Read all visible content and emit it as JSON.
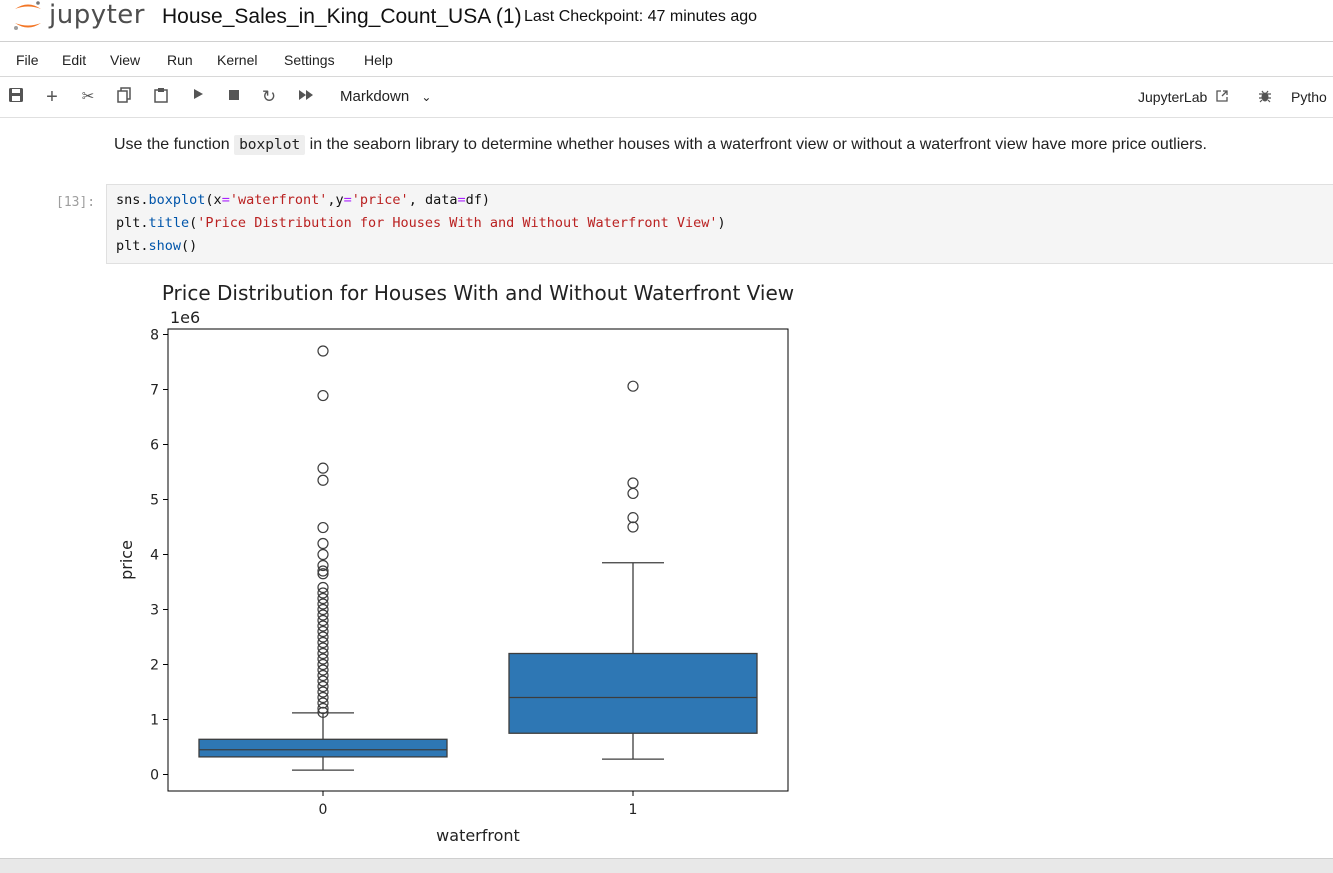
{
  "header": {
    "logo_text": "jupyter",
    "notebook_title": "House_Sales_in_King_Count_USA (1)",
    "checkpoint": "Last Checkpoint: 47 minutes ago"
  },
  "menu": [
    "File",
    "Edit",
    "View",
    "Run",
    "Kernel",
    "Settings",
    "Help"
  ],
  "toolbar": {
    "icons": [
      "save-icon",
      "add-icon",
      "cut-icon",
      "copy-icon",
      "paste-icon",
      "run-icon",
      "stop-icon",
      "restart-icon",
      "fast-forward-icon"
    ],
    "cell_type": "Markdown",
    "jupyterlab_label": "JupyterLab",
    "kernel_label": "Pytho"
  },
  "markdown_cell": {
    "before": "Use the function ",
    "code": "boxplot",
    "after": " in the seaborn library to determine whether houses with a waterfront view or without a waterfront view have more price outliers."
  },
  "code_cell": {
    "prompt": "[13]:",
    "lines": [
      "sns.boxplot(x='waterfront',y='price', data=df)",
      "plt.title('Price Distribution for Houses With and Without Waterfront View')",
      "plt.show()"
    ]
  },
  "chart_data": {
    "type": "box",
    "title": "Price Distribution for Houses With and Without Waterfront View",
    "xlabel": "waterfront",
    "ylabel": "price",
    "offset_text": "1e6",
    "categories": [
      "0",
      "1"
    ],
    "ylim": [
      -0.3,
      8.1
    ],
    "yticks": [
      0,
      1,
      2,
      3,
      4,
      5,
      6,
      7,
      8
    ],
    "color": "#2e77b4",
    "boxes": [
      {
        "category": "0",
        "whisker_low": 0.08,
        "q1": 0.32,
        "median": 0.45,
        "q3": 0.64,
        "whisker_high": 1.12,
        "outliers": [
          7.7,
          6.89,
          5.57,
          5.35,
          4.49,
          4.2,
          4.0,
          3.8,
          3.7,
          3.65,
          3.4,
          3.3,
          3.2,
          3.1,
          3.0,
          2.9,
          2.8,
          2.7,
          2.6,
          2.5,
          2.4,
          2.3,
          2.2,
          2.1,
          2.0,
          1.9,
          1.8,
          1.7,
          1.6,
          1.5,
          1.4,
          1.3,
          1.2,
          1.13
        ]
      },
      {
        "category": "1",
        "whisker_low": 0.28,
        "q1": 0.75,
        "median": 1.4,
        "q3": 2.2,
        "whisker_high": 3.85,
        "outliers": [
          7.06,
          5.3,
          5.11,
          4.67,
          4.5
        ]
      }
    ]
  }
}
